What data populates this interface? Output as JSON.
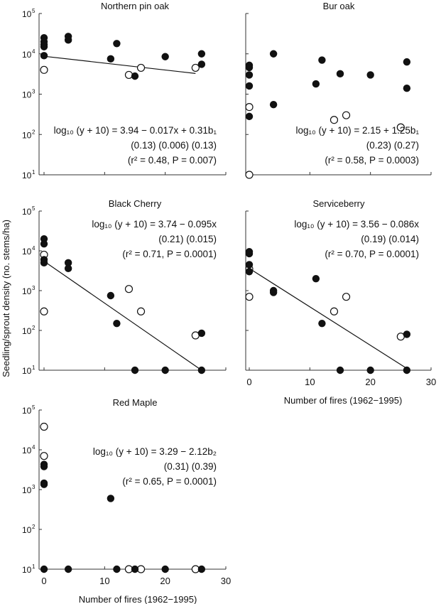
{
  "chart_data": {
    "type": "scatter",
    "ylabel": "Seedling/sprout density (no. stems/ha)",
    "xlabel": "Number of fires (1962−1995)",
    "xlim": [
      0,
      30
    ],
    "ylim": [
      10,
      100000
    ],
    "yscale": "log",
    "x_ticks": [
      "0",
      "10",
      "20",
      "30"
    ],
    "y_ticks": [
      {
        "base": "10",
        "exp": "5"
      },
      {
        "base": "10",
        "exp": "4"
      },
      {
        "base": "10",
        "exp": "3"
      },
      {
        "base": "10",
        "exp": "2"
      },
      {
        "base": "10",
        "exp": "1"
      }
    ],
    "panels": [
      {
        "title": "Northern pin oak",
        "equation": [
          "log₁₀ (y + 10) = 3.94 − 0.017x + 0.31b₁",
          "(0.13)  (0.006)    (0.13)",
          "(r² = 0.48, P = 0.007)"
        ],
        "fit": {
          "intercept": 3.94,
          "slope": -0.017,
          "x_range": [
            0,
            25
          ]
        },
        "filled": [
          [
            0,
            25000
          ],
          [
            0,
            20000
          ],
          [
            0,
            17000
          ],
          [
            0,
            15000
          ],
          [
            0,
            9000
          ],
          [
            4,
            27000
          ],
          [
            4,
            22000
          ],
          [
            11,
            7500
          ],
          [
            12,
            18000
          ],
          [
            15,
            2800
          ],
          [
            20,
            8500
          ],
          [
            26,
            10000
          ],
          [
            26,
            5500
          ]
        ],
        "open": [
          [
            0,
            4000
          ],
          [
            14,
            3000
          ],
          [
            16,
            4500
          ],
          [
            25,
            4500
          ]
        ]
      },
      {
        "title": "Bur oak",
        "equation": [
          "log₁₀ (y + 10) = 2.15 + 1.25b₁",
          "(0.23)  (0.27)",
          "(r² = 0.58, P = 0.0003)"
        ],
        "fit": null,
        "filled": [
          [
            0,
            5200
          ],
          [
            0,
            4600
          ],
          [
            0,
            3000
          ],
          [
            0,
            1600
          ],
          [
            0,
            280
          ],
          [
            4,
            10000
          ],
          [
            4,
            550
          ],
          [
            11,
            1800
          ],
          [
            12,
            7000
          ],
          [
            15,
            3200
          ],
          [
            20,
            3000
          ],
          [
            26,
            6300
          ],
          [
            26,
            1400
          ]
        ],
        "open": [
          [
            0,
            480
          ],
          [
            0,
            10
          ],
          [
            14,
            230
          ],
          [
            16,
            300
          ],
          [
            25,
            150
          ]
        ]
      },
      {
        "title": "Black Cherry",
        "equation": [
          "log₁₀ (y + 10) = 3.74 − 0.095x",
          "(0.21)  (0.015)",
          "(r² = 0.71, P = 0.0001)"
        ],
        "fit": {
          "intercept": 3.74,
          "slope": -0.095,
          "x_range": [
            0,
            26
          ]
        },
        "filled": [
          [
            0,
            20000
          ],
          [
            0,
            15000
          ],
          [
            0,
            6000
          ],
          [
            0,
            5000
          ],
          [
            4,
            5000
          ],
          [
            4,
            3600
          ],
          [
            11,
            750
          ],
          [
            12,
            150
          ],
          [
            15,
            10
          ],
          [
            20,
            10
          ],
          [
            26,
            85
          ],
          [
            26,
            10
          ]
        ],
        "open": [
          [
            0,
            8000
          ],
          [
            0,
            300
          ],
          [
            14,
            1100
          ],
          [
            16,
            300
          ],
          [
            25,
            75
          ]
        ]
      },
      {
        "title": "Serviceberry",
        "equation": [
          "log₁₀ (y + 10) = 3.56 − 0.086x",
          "(0.19)  (0.014)",
          "(r² = 0.70, P = 0.0001)"
        ],
        "fit": {
          "intercept": 3.56,
          "slope": -0.086,
          "x_range": [
            0,
            26
          ]
        },
        "filled": [
          [
            0,
            9500
          ],
          [
            0,
            8500
          ],
          [
            0,
            4500
          ],
          [
            0,
            3000
          ],
          [
            4,
            1000
          ],
          [
            4,
            900
          ],
          [
            11,
            2000
          ],
          [
            12,
            150
          ],
          [
            15,
            10
          ],
          [
            20,
            10
          ],
          [
            26,
            80
          ],
          [
            26,
            10
          ]
        ],
        "open": [
          [
            0,
            3500
          ],
          [
            0,
            700
          ],
          [
            14,
            300
          ],
          [
            16,
            700
          ],
          [
            25,
            70
          ]
        ]
      },
      {
        "title": "Red Maple",
        "equation": [
          "log₁₀ (y + 10) = 3.29 − 2.12b₂",
          "(0.31)  (0.39)",
          "(r² = 0.65, P = 0.0001)"
        ],
        "fit": null,
        "filled": [
          [
            0,
            4300
          ],
          [
            0,
            3800
          ],
          [
            0,
            1450
          ],
          [
            0,
            1350
          ],
          [
            0,
            10
          ],
          [
            4,
            10
          ],
          [
            11,
            600
          ],
          [
            12,
            10
          ],
          [
            15,
            10
          ],
          [
            20,
            10
          ],
          [
            26,
            10
          ]
        ],
        "open": [
          [
            0,
            38000
          ],
          [
            0,
            7000
          ],
          [
            14,
            10
          ],
          [
            16,
            10
          ],
          [
            25,
            10
          ]
        ]
      }
    ]
  }
}
